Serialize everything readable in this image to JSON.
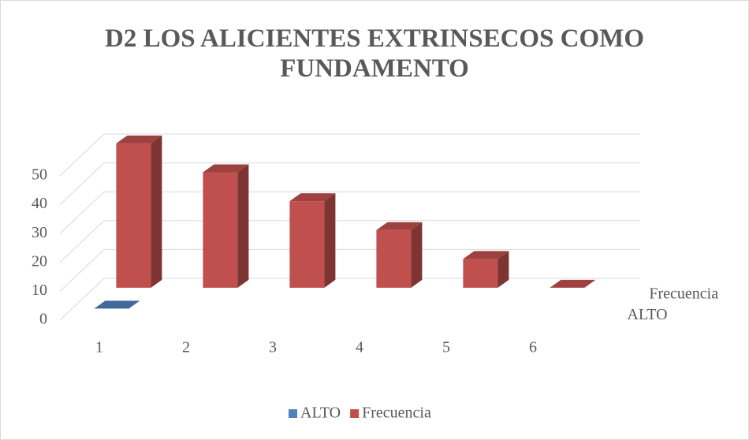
{
  "chart_data": {
    "type": "bar3d",
    "title": "D2 LOS ALICIENTES EXTRINSECOS COMO FUNDAMENTO",
    "categories": [
      "1",
      "2",
      "3",
      "4",
      "5",
      "6"
    ],
    "series": [
      {
        "name": "ALTO",
        "color": "#4f81bd",
        "values": [
          0,
          null,
          null,
          null,
          null,
          null
        ]
      },
      {
        "name": "Frecuencia",
        "color": "#c0504d",
        "values": [
          50,
          40,
          30,
          20,
          10,
          0
        ]
      }
    ],
    "ylim": [
      0,
      50
    ],
    "yticks": [
      0,
      10,
      20,
      30,
      40,
      50
    ],
    "grid": true,
    "legend": "bottom"
  }
}
